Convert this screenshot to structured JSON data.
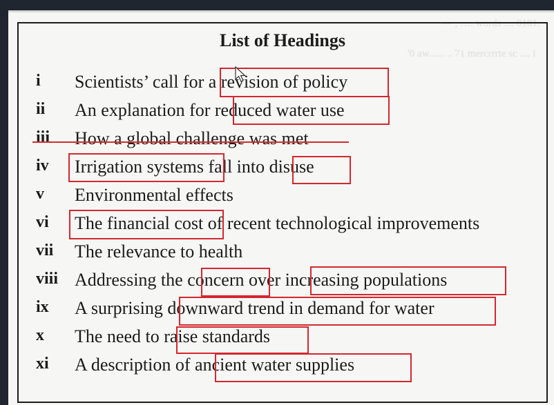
{
  "title": "List of Headings",
  "background_text": [
    "— , …. words .... 0101.",
    "'0 aw...... .. 71 mercrrrte sc .... i"
  ],
  "headings": [
    {
      "num": "i",
      "text": "Scientists’ call for a revision of policy"
    },
    {
      "num": "ii",
      "text": "An explanation for reduced water use"
    },
    {
      "num": "iii",
      "text": "How a global challenge was met",
      "struck": true
    },
    {
      "num": "iv",
      "text": "Irrigation systems fall into disuse"
    },
    {
      "num": "v",
      "text": "Environmental effects"
    },
    {
      "num": "vi",
      "text": "The financial cost of recent technological improvements"
    },
    {
      "num": "vii",
      "text": "The relevance to health"
    },
    {
      "num": "viii",
      "text": "Addressing the concern over increasing populations"
    },
    {
      "num": "ix",
      "text": "A surprising downward trend in demand for water"
    },
    {
      "num": "x",
      "text": "The need to raise standards"
    },
    {
      "num": "xi",
      "text": "A description of ancient water supplies"
    }
  ],
  "colors": {
    "annotation": "#d4262e",
    "text": "#1b1b1b",
    "paper": "#f6f6f4"
  },
  "icons": {
    "cursor": "mouse-pointer-icon"
  }
}
